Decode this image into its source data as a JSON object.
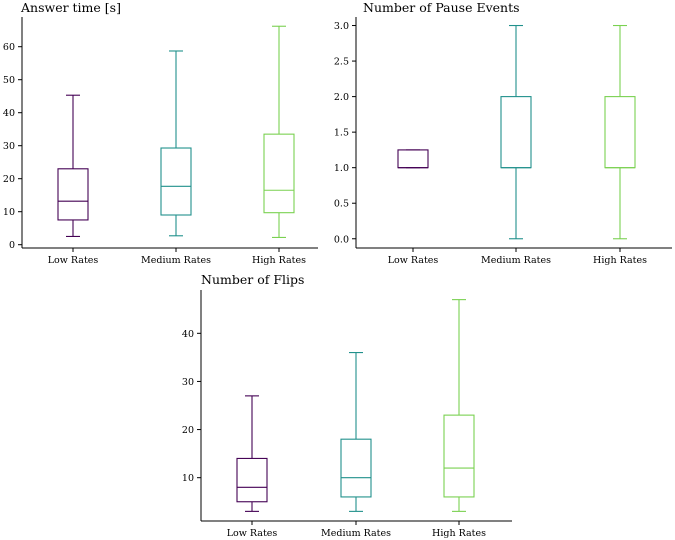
{
  "chart_data": [
    {
      "type": "box",
      "title": "Answer time [s]",
      "categories": [
        "Low Rates",
        "Medium Rates",
        "High Rates"
      ],
      "colors": [
        "#440154",
        "#21918c",
        "#7ad151"
      ],
      "ylim": [
        -1,
        69
      ],
      "yticks": [
        0,
        10,
        20,
        30,
        40,
        50,
        60
      ],
      "ytick_labels": [
        "0",
        "10",
        "20",
        "30",
        "40",
        "50",
        "60"
      ],
      "boxes": [
        {
          "whisker_low": 2.5,
          "q1": 7.5,
          "median": 13.2,
          "q3": 23.0,
          "whisker_high": 45.3
        },
        {
          "whisker_low": 2.7,
          "q1": 9.0,
          "median": 17.7,
          "q3": 29.3,
          "whisker_high": 58.7
        },
        {
          "whisker_low": 2.2,
          "q1": 9.7,
          "median": 16.5,
          "q3": 33.5,
          "whisker_high": 66.2
        }
      ]
    },
    {
      "type": "box",
      "title": "Number of Pause Events",
      "categories": [
        "Low Rates",
        "Medium Rates",
        "High Rates"
      ],
      "colors": [
        "#440154",
        "#21918c",
        "#7ad151"
      ],
      "ylim": [
        -0.13,
        3.12
      ],
      "yticks": [
        0,
        0.5,
        1,
        1.5,
        2,
        2.5,
        3
      ],
      "ytick_labels": [
        "0.0",
        "0.5",
        "1.0",
        "1.5",
        "2.0",
        "2.5",
        "3.0"
      ],
      "boxes": [
        {
          "whisker_low": 1.0,
          "q1": 1.0,
          "median": 1.0,
          "q3": 1.25,
          "whisker_high": 1.25
        },
        {
          "whisker_low": 0.0,
          "q1": 1.0,
          "median": 1.0,
          "q3": 2.0,
          "whisker_high": 3.0
        },
        {
          "whisker_low": 0.0,
          "q1": 1.0,
          "median": 1.0,
          "q3": 2.0,
          "whisker_high": 3.0
        }
      ]
    },
    {
      "type": "box",
      "title": "Number of Flips",
      "categories": [
        "Low Rates",
        "Medium Rates",
        "High Rates"
      ],
      "colors": [
        "#440154",
        "#21918c",
        "#7ad151"
      ],
      "ylim": [
        1,
        49
      ],
      "yticks": [
        10,
        20,
        30,
        40
      ],
      "ytick_labels": [
        "10",
        "20",
        "30",
        "40"
      ],
      "boxes": [
        {
          "whisker_low": 3,
          "q1": 5,
          "median": 8,
          "q3": 14,
          "whisker_high": 27
        },
        {
          "whisker_low": 3,
          "q1": 6,
          "median": 10,
          "q3": 18,
          "whisker_high": 36
        },
        {
          "whisker_low": 3,
          "q1": 6,
          "median": 12,
          "q3": 23,
          "whisker_high": 47
        }
      ]
    }
  ]
}
